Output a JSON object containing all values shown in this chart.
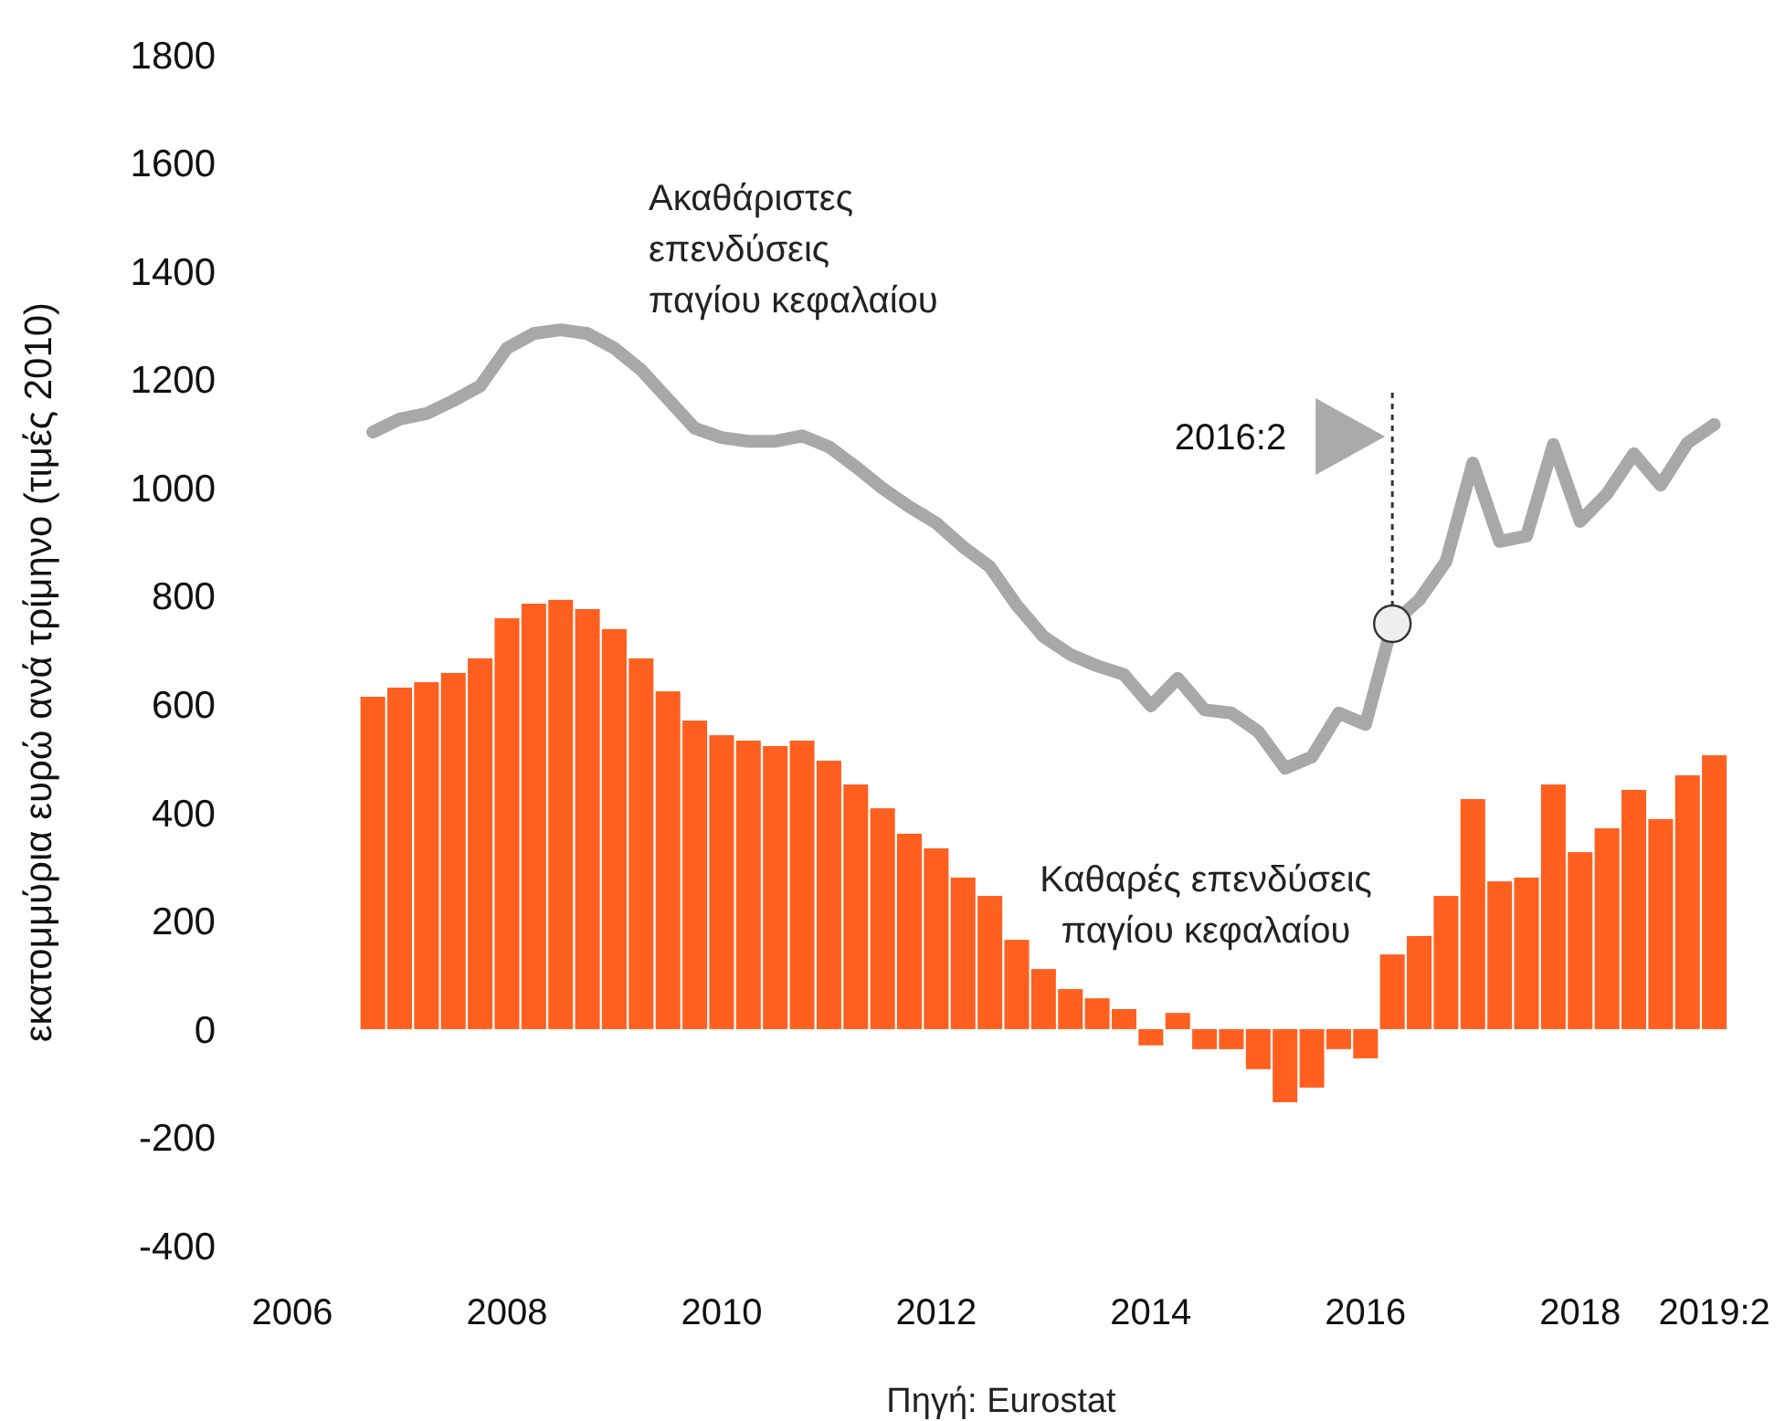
{
  "chart_data": {
    "type": "bar",
    "ylabel": "εκατομμύρια ευρώ ανά τρίμηνο (τιμές 2010)",
    "x": [
      2006.75,
      2007,
      2007.25,
      2007.5,
      2007.75,
      2008,
      2008.25,
      2008.5,
      2008.75,
      2009,
      2009.25,
      2009.5,
      2009.75,
      2010,
      2010.25,
      2010.5,
      2010.75,
      2011,
      2011.25,
      2011.5,
      2011.75,
      2012,
      2012.25,
      2012.5,
      2012.75,
      2013,
      2013.25,
      2013.5,
      2013.75,
      2014,
      2014.25,
      2014.5,
      2014.75,
      2015,
      2015.25,
      2015.5,
      2015.75,
      2016,
      2016.25,
      2016.5,
      2016.75,
      2017,
      2017.25,
      2017.5,
      2017.75,
      2018,
      2018.25,
      2018.5,
      2018.75,
      2019,
      2019.25
    ],
    "series": [
      {
        "name": "Καθαρές επενδύσεις παγίου κεφαλαίου",
        "color": "#ff5f1f",
        "values": [
          614,
          631,
          641,
          658,
          685,
          759,
          786,
          793,
          776,
          739,
          685,
          624,
          570,
          543,
          533,
          523,
          533,
          496,
          452,
          408,
          361,
          334,
          280,
          246,
          165,
          111,
          74,
          57,
          37,
          -30,
          30,
          -37,
          -37,
          -74,
          -135,
          -108,
          -37,
          -54,
          138,
          172,
          246,
          425,
          273,
          280,
          452,
          327,
          371,
          442,
          388,
          469,
          506
        ]
      },
      {
        "name": "Ακαθάριστες επενδύσεις παγίου κεφαλαίου",
        "type": "line",
        "color": "#a8a8a8",
        "values": [
          1103,
          1127,
          1137,
          1161,
          1188,
          1258,
          1285,
          1292,
          1285,
          1258,
          1218,
          1164,
          1110,
          1093,
          1086,
          1086,
          1096,
          1076,
          1039,
          999,
          965,
          935,
          891,
          854,
          783,
          725,
          692,
          671,
          655,
          597,
          648,
          590,
          584,
          550,
          482,
          503,
          584,
          563,
          749,
          793,
          864,
          1046,
          901,
          911,
          1080,
          938,
          989,
          1063,
          1005,
          1083,
          1117
        ]
      }
    ],
    "xlim": [
      2006,
      2019.5
    ],
    "xticks": [
      2006,
      2008,
      2010,
      2012,
      2014,
      2016,
      2018,
      {
        "value": 2019.25,
        "label": "2019:2"
      }
    ],
    "ylim": [
      -400,
      1800
    ],
    "yticks": [
      -400,
      -200,
      0,
      200,
      400,
      600,
      800,
      1000,
      1200,
      1400,
      1600,
      1800
    ],
    "grid": false,
    "legend": false,
    "ref_lines": [
      {
        "axis": "x",
        "value": 2016.25,
        "label": "2016:2",
        "line_style": "dotted",
        "color": "#333333"
      }
    ],
    "annotations": [
      "Πηγή: Eurostat"
    ]
  }
}
